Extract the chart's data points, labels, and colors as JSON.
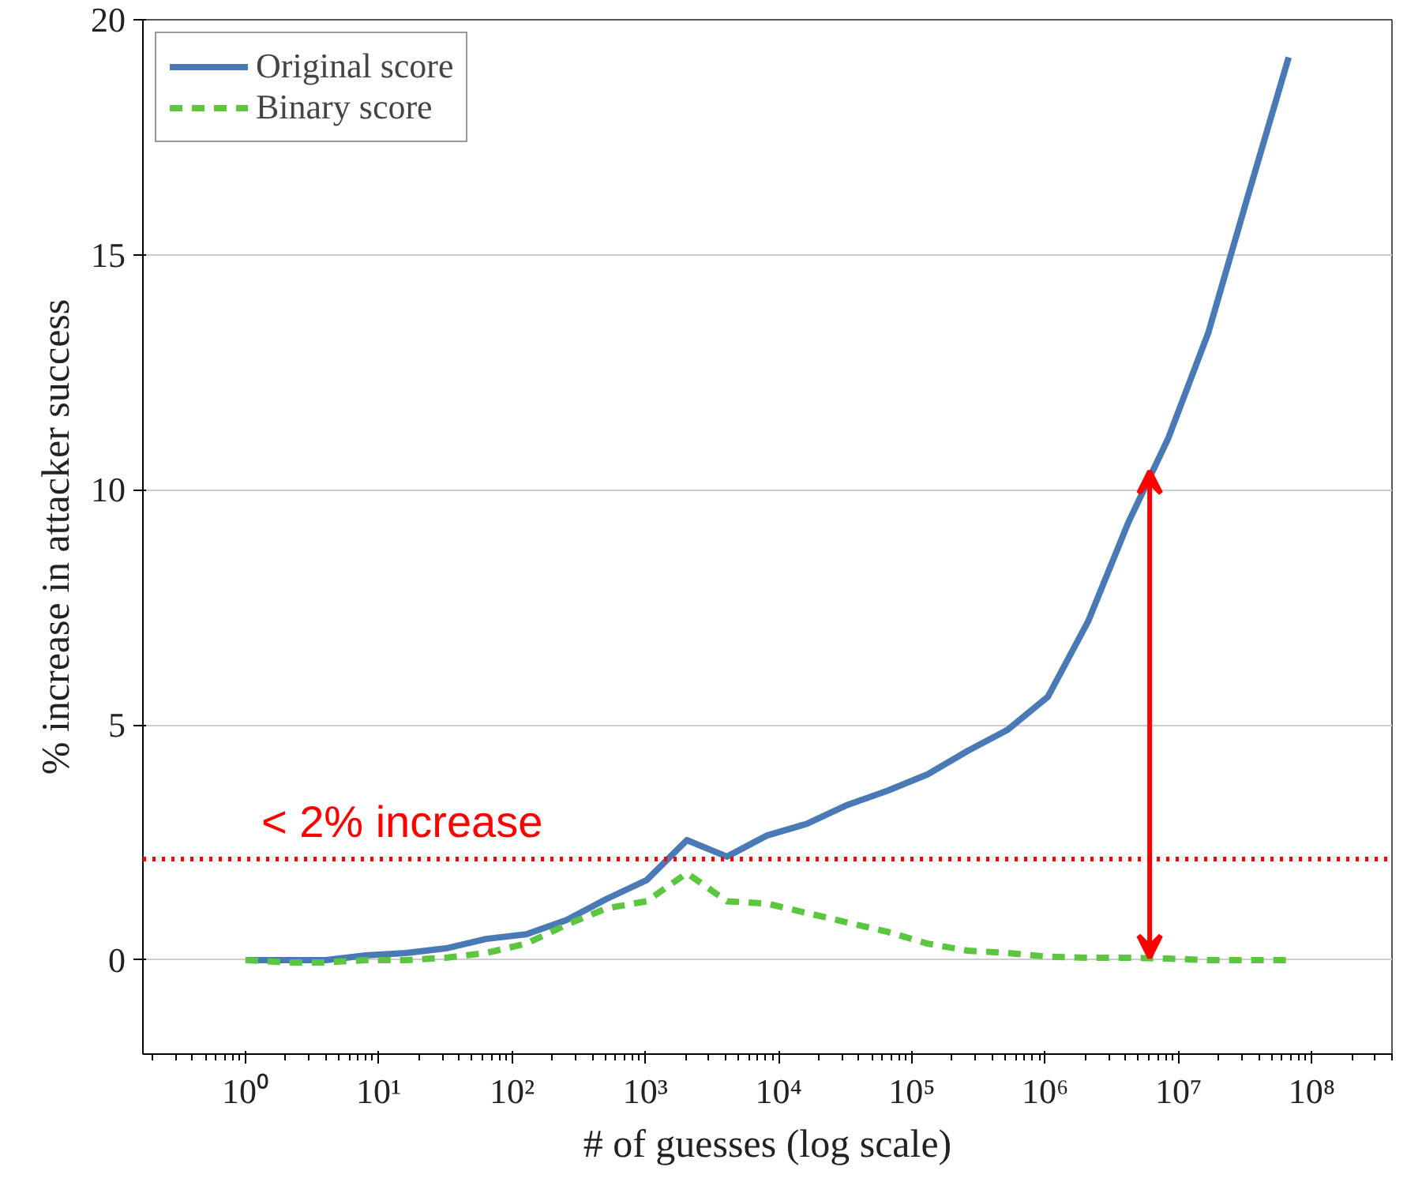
{
  "chart_data": {
    "type": "line",
    "xlabel": "# of guesses (log scale)",
    "ylabel": "% increase in attacker success",
    "x": [
      1,
      2,
      4,
      8,
      16,
      32,
      64,
      128,
      256,
      512,
      1024,
      2048,
      4096,
      8192,
      16384,
      32768,
      65536,
      131072,
      262144,
      524288,
      1048576,
      2097152,
      4194304,
      8388608,
      16777216,
      33554432,
      67108864
    ],
    "series": [
      {
        "name": "Original score",
        "color": "#4a7ab5",
        "line_style": "solid",
        "values": [
          0,
          0,
          0,
          0.1,
          0.15,
          0.25,
          0.45,
          0.55,
          0.85,
          1.3,
          1.7,
          2.55,
          2.2,
          2.65,
          2.9,
          3.3,
          3.6,
          3.95,
          4.45,
          4.9,
          5.6,
          7.2,
          9.3,
          11.1,
          13.35,
          16.3,
          19.2
        ]
      },
      {
        "name": "Binary score",
        "color": "#5cc640",
        "line_style": "dashed",
        "values": [
          0,
          -0.05,
          -0.05,
          0,
          0,
          0.05,
          0.15,
          0.35,
          0.75,
          1.1,
          1.25,
          1.85,
          1.25,
          1.2,
          1.0,
          0.8,
          0.6,
          0.35,
          0.2,
          0.15,
          0.07,
          0.05,
          0.05,
          0.03,
          0,
          0,
          0
        ]
      }
    ],
    "log": "x",
    "xlim": [
      0.17,
      400000000
    ],
    "ylim": [
      -2,
      20
    ],
    "xticks": [
      {
        "value": 1,
        "label": "10⁰"
      },
      {
        "value": 10,
        "label": "10¹"
      },
      {
        "value": 100,
        "label": "10²"
      },
      {
        "value": 1000,
        "label": "10³"
      },
      {
        "value": 10000,
        "label": "10⁴"
      },
      {
        "value": 100000,
        "label": "10⁵"
      },
      {
        "value": 1000000,
        "label": "10⁶"
      },
      {
        "value": 10000000,
        "label": "10⁷"
      },
      {
        "value": 100000000,
        "label": "10⁸"
      }
    ],
    "yticks": [
      0,
      5,
      10,
      15,
      20
    ],
    "grid": "y",
    "legend": "top left",
    "ref_lines": [
      {
        "axis": "y",
        "value": 2.15,
        "label": "< 2% increase",
        "color": "#ff0000",
        "line_style": "dotted"
      }
    ]
  }
}
